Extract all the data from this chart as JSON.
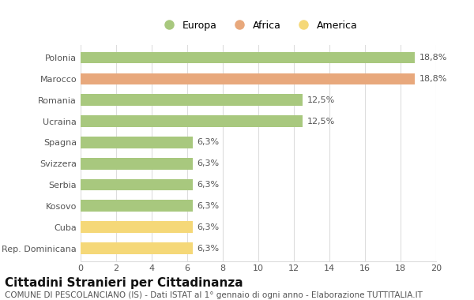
{
  "categories": [
    "Polonia",
    "Marocco",
    "Romania",
    "Ucraina",
    "Spagna",
    "Svizzera",
    "Serbia",
    "Kosovo",
    "Cuba",
    "Rep. Dominicana"
  ],
  "values": [
    18.8,
    18.8,
    12.5,
    12.5,
    6.3,
    6.3,
    6.3,
    6.3,
    6.3,
    6.3
  ],
  "labels": [
    "18,8%",
    "18,8%",
    "12,5%",
    "12,5%",
    "6,3%",
    "6,3%",
    "6,3%",
    "6,3%",
    "6,3%",
    "6,3%"
  ],
  "colors": [
    "#a8c87e",
    "#e8a87c",
    "#a8c87e",
    "#a8c87e",
    "#a8c87e",
    "#a8c87e",
    "#a8c87e",
    "#a8c87e",
    "#f5d878",
    "#f5d878"
  ],
  "legend": [
    {
      "label": "Europa",
      "color": "#a8c87e"
    },
    {
      "label": "Africa",
      "color": "#e8a87c"
    },
    {
      "label": "America",
      "color": "#f5d878"
    }
  ],
  "xlim": [
    0,
    20
  ],
  "xticks": [
    0,
    2,
    4,
    6,
    8,
    10,
    12,
    14,
    16,
    18,
    20
  ],
  "title": "Cittadini Stranieri per Cittadinanza",
  "subtitle": "COMUNE DI PESCOLANCIANO (IS) - Dati ISTAT al 1° gennaio di ogni anno - Elaborazione TUTTITALIA.IT",
  "background_color": "#ffffff",
  "grid_color": "#dddddd",
  "bar_height": 0.55,
  "title_fontsize": 11,
  "subtitle_fontsize": 7.5,
  "label_fontsize": 8,
  "tick_fontsize": 8,
  "legend_fontsize": 9
}
